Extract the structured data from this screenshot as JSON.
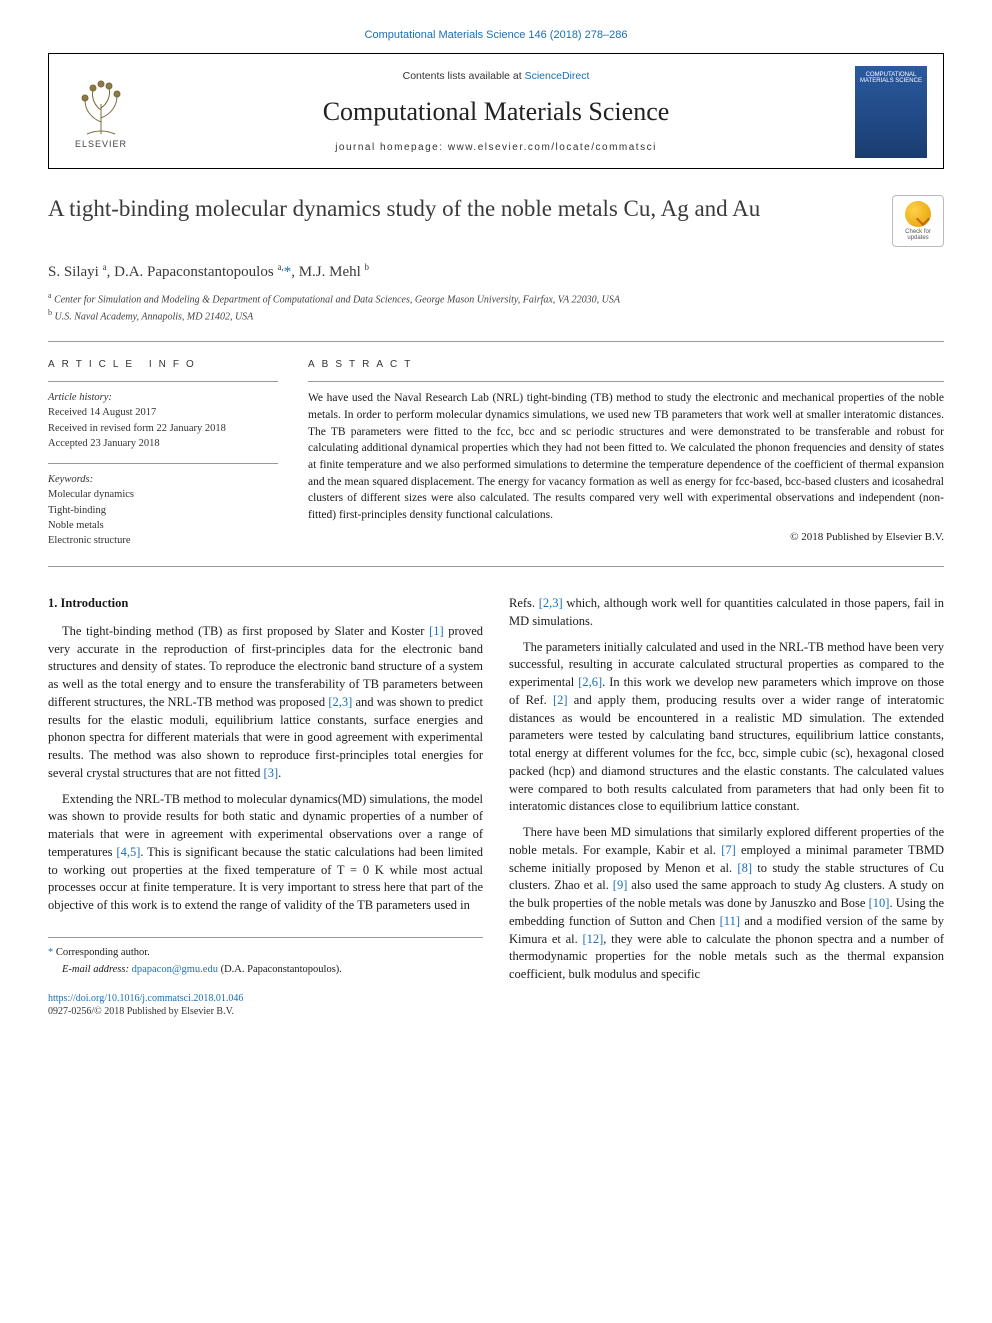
{
  "journal_ref": {
    "journal": "Computational Materials Science",
    "vol_pages": "146 (2018) 278–286"
  },
  "masthead": {
    "publisher": "ELSEVIER",
    "contents_prefix": "Contents lists available at ",
    "contents_link": "ScienceDirect",
    "journal_name": "Computational Materials Science",
    "homepage_prefix": "journal homepage: ",
    "homepage_url": "www.elsevier.com/locate/commatsci",
    "cover_title": "COMPUTATIONAL MATERIALS SCIENCE"
  },
  "updates_badge": {
    "line1": "Check for",
    "line2": "updates"
  },
  "article": {
    "title": "A tight-binding molecular dynamics study of the noble metals Cu, Ag and Au",
    "authors_html": "S. Silayi <sup>a</sup>, D.A. Papaconstantopoulos <sup>a,</sup><span class=\"star\">*</span>, M.J. Mehl <sup>b</sup>",
    "affil_a": "Center for Simulation and Modeling & Department of Computational and Data Sciences, George Mason University, Fairfax, VA 22030, USA",
    "affil_b": "U.S. Naval Academy, Annapolis, MD 21402, USA"
  },
  "info_heads": {
    "left": "ARTICLE INFO",
    "right": "ABSTRACT"
  },
  "history": {
    "head": "Article history:",
    "received": "Received 14 August 2017",
    "revised": "Received in revised form 22 January 2018",
    "accepted": "Accepted 23 January 2018"
  },
  "keywords": {
    "head": "Keywords:",
    "items": [
      "Molecular dynamics",
      "Tight-binding",
      "Noble metals",
      "Electronic structure"
    ]
  },
  "abstract": {
    "text": "We have used the Naval Research Lab (NRL) tight-binding (TB) method to study the electronic and mechanical properties of the noble metals. In order to perform molecular dynamics simulations, we used new TB parameters that work well at smaller interatomic distances. The TB parameters were fitted to the fcc, bcc and sc periodic structures and were demonstrated to be transferable and robust for calculating additional dynamical properties which they had not been fitted to. We calculated the phonon frequencies and density of states at finite temperature and we also performed simulations to determine the temperature dependence of the coefficient of thermal expansion and the mean squared displacement. The energy for vacancy formation as well as energy for fcc-based, bcc-based clusters and icosahedral clusters of different sizes were also calculated. The results compared very well with experimental observations and independent (non-fitted) first-principles density functional calculations.",
    "copyright": "© 2018 Published by Elsevier B.V."
  },
  "section1": {
    "heading": "1. Introduction",
    "p1_pre": "The tight-binding method (TB) as first proposed by Slater and Koster ",
    "p1_ref1": "[1]",
    "p1_mid1": " proved very accurate in the reproduction of first-principles data for the electronic band structures and density of states. To reproduce the electronic band structure of a system as well as the total energy and to ensure the transferability of TB parameters between different structures, the NRL-TB method was proposed ",
    "p1_ref2": "[2,3]",
    "p1_mid2": " and was shown to predict results for the elastic moduli, equilibrium lattice constants, surface energies and phonon spectra for different materials that were in good agreement with experimental results. The method was also shown to reproduce first-principles total energies for several crystal structures that are not fitted ",
    "p1_ref3": "[3]",
    "p1_end": ".",
    "p2_pre": "Extending the NRL-TB method to molecular dynamics(MD) simulations, the model was shown to provide results for both static and dynamic properties of a number of materials that were in agreement with experimental observations over a range of temperatures ",
    "p2_ref1": "[4,5]",
    "p2_mid": ". This is significant because the static calculations had been limited to working out properties at the fixed temperature of T = 0 K while most actual processes occur at finite temperature. It is very important to stress here that part of the objective of this work is to extend the range of validity of the TB parameters used in",
    "p3_pre": "Refs. ",
    "p3_ref1": "[2,3]",
    "p3_end": " which, although work well for quantities calculated in those papers, fail in MD simulations.",
    "p4_pre": "The parameters initially calculated and used in the NRL-TB method have been very successful, resulting in accurate calculated structural properties as compared to the experimental ",
    "p4_ref1": "[2,6]",
    "p4_mid": ". In this work we develop new parameters which improve on those of Ref. ",
    "p4_ref2": "[2]",
    "p4_end": " and apply them, producing results over a wider range of interatomic distances as would be encountered in a realistic MD simulation. The extended parameters were tested by calculating band structures, equilibrium lattice constants, total energy at different volumes for the fcc, bcc, simple cubic (sc), hexagonal closed packed (hcp) and diamond structures and the elastic constants. The calculated values were compared to both results calculated from parameters that had only been fit to interatomic distances close to equilibrium lattice constant.",
    "p5_pre": "There have been MD simulations that similarly explored different properties of the noble metals. For example, Kabir et al. ",
    "p5_ref1": "[7]",
    "p5_mid1": " employed a minimal parameter TBMD scheme initially proposed by Menon et al. ",
    "p5_ref2": "[8]",
    "p5_mid2": " to study the stable structures of Cu clusters. Zhao et al. ",
    "p5_ref3": "[9]",
    "p5_mid3": " also used the same approach to study Ag clusters. A study on the bulk properties of the noble metals was done by Januszko and Bose ",
    "p5_ref4": "[10]",
    "p5_mid4": ". Using the embedding function of Sutton and Chen ",
    "p5_ref5": "[11]",
    "p5_mid5": " and a modified version of the same by Kimura et al. ",
    "p5_ref6": "[12]",
    "p5_end": ", they were able to calculate the phonon spectra and a number of thermodynamic properties for the noble metals such as the thermal expansion coefficient, bulk modulus and specific"
  },
  "footer": {
    "corr_marker": "* ",
    "corr_text": "Corresponding author.",
    "email_label": "E-mail address: ",
    "email": "dpapacon@gmu.edu",
    "email_paren": " (D.A. Papaconstantopoulos)."
  },
  "doi": {
    "url": "https://doi.org/10.1016/j.commatsci.2018.01.046",
    "issn_line": "0927-0256/© 2018 Published by Elsevier B.V."
  },
  "colors": {
    "link": "#1a6fb5",
    "rule": "#999999"
  }
}
